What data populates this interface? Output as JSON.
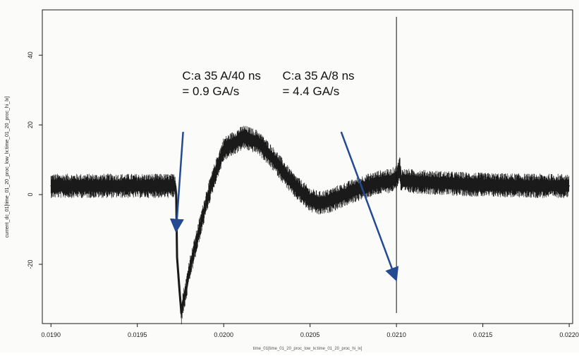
{
  "chart_data": {
    "type": "line",
    "title": "",
    "xlabel": "time_01[time_01_20_proc_low_lx:time_01_20_proc_hi_lx]",
    "ylabel": "current_dc_01[time_01_20_proc_low_lx:time_01_20_proc_hi_lx]",
    "xlim": [
      0.01895,
      0.02202
    ],
    "ylim": [
      -37,
      53
    ],
    "x_ticks": [
      0.019,
      0.0195,
      0.02,
      0.0205,
      0.021,
      0.0215,
      0.022
    ],
    "x_tick_labels": [
      "0.0190",
      "0.0195",
      "0.0200",
      "0.0205",
      "0.0210",
      "0.0215",
      "0.0220"
    ],
    "y_ticks": [
      -20,
      0,
      20,
      40
    ],
    "y_tick_labels": [
      "-20",
      "0",
      "20",
      "40"
    ],
    "grid": false,
    "series": [
      {
        "band_halfwidth": 2.5,
        "color": "#1a1a1a",
        "x": [
          0.019,
          0.01972,
          0.019725,
          0.01973,
          0.019745,
          0.01975,
          0.019755,
          0.01976,
          0.01978,
          0.0198,
          0.01985,
          0.0199,
          0.01995,
          0.02,
          0.020115,
          0.0202,
          0.0203,
          0.0204,
          0.0205,
          0.02055,
          0.0206,
          0.0207,
          0.0208,
          0.0209,
          0.02097,
          0.021,
          0.02101,
          0.02102,
          0.021025,
          0.02104,
          0.0211,
          0.0212,
          0.0213,
          0.0214,
          0.0215,
          0.0216,
          0.0217,
          0.0218,
          0.0219,
          0.022
        ],
        "y": [
          2.5,
          2.5,
          0,
          -18,
          -28,
          -31,
          -34,
          -32,
          -28,
          -22,
          -12,
          -2,
          6,
          13,
          16.5,
          15,
          9.5,
          3,
          -1.5,
          -2.5,
          -2,
          0,
          2,
          3.5,
          4,
          5,
          6,
          8,
          4,
          4,
          3.8,
          3.5,
          3.2,
          3,
          2.8,
          2.7,
          2.6,
          2.5,
          2.5,
          2.5
        ]
      }
    ],
    "spikes": [
      {
        "x": 0.021,
        "y_min": -34,
        "y_max": 51
      }
    ],
    "annotations": [
      {
        "lines": [
          "C:a 35 A/40 ns",
          "=  0.9 GA/s"
        ],
        "text_x": 0.01976,
        "text_y": 33,
        "arrow_from": [
          0.019765,
          18
        ],
        "arrow_to": [
          0.019725,
          -10
        ]
      },
      {
        "lines": [
          "C:a 35 A/8 ns",
          "=  4.4 GA/s"
        ],
        "text_x": 0.02034,
        "text_y": 33,
        "arrow_from": [
          0.02068,
          18
        ],
        "arrow_to": [
          0.020995,
          -24
        ]
      }
    ],
    "annotation_color": "#244a92"
  }
}
